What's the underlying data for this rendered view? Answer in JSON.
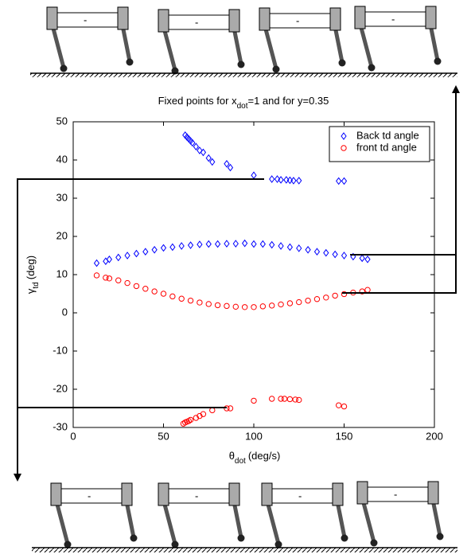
{
  "chart_data": {
    "type": "scatter",
    "title": {
      "before": "Fixed points for x",
      "subscript": "dot",
      "after": "=1 and for y=0.35"
    },
    "x_label": {
      "symbol": "θ",
      "subscript": "dot",
      "unit": "(deg/s)"
    },
    "y_label": {
      "symbol": "γ",
      "subscript": "td",
      "unit": "(deg)"
    },
    "xlim": [
      0,
      200
    ],
    "xticks": [
      0,
      50,
      100,
      150,
      200
    ],
    "ylim": [
      -30,
      50
    ],
    "yticks": [
      -30,
      -20,
      -10,
      0,
      10,
      20,
      30,
      40,
      50
    ],
    "legend": "upper right",
    "series": [
      {
        "name": "Back td angle",
        "color": "#0000ff",
        "marker": "diamond",
        "x": [
          62,
          63,
          64,
          65,
          66,
          68,
          70,
          72,
          75,
          77,
          85,
          87,
          100,
          110,
          113,
          115,
          118,
          120,
          122,
          125,
          147,
          150,
          13,
          18,
          20,
          25,
          30,
          35,
          40,
          45,
          50,
          55,
          60,
          65,
          70,
          75,
          80,
          85,
          90,
          95,
          100,
          105,
          110,
          115,
          120,
          125,
          130,
          135,
          140,
          145,
          150,
          155,
          160,
          163
        ],
        "values": [
          46.5,
          46,
          45.5,
          45,
          44.5,
          43.5,
          42.5,
          42,
          40.5,
          39.5,
          39,
          38,
          36,
          35,
          35,
          34.8,
          34.8,
          34.7,
          34.6,
          34.6,
          34.5,
          34.5,
          13,
          13.5,
          14,
          14.5,
          15,
          15.5,
          16,
          16.5,
          17,
          17.2,
          17.5,
          17.7,
          17.9,
          18,
          18,
          18.1,
          18.1,
          18.2,
          18,
          18,
          17.8,
          17.5,
          17.2,
          16.9,
          16.5,
          16,
          15.7,
          15.3,
          15,
          14.7,
          14.3,
          14
        ]
      },
      {
        "name": "front td angle",
        "color": "#ff0000",
        "marker": "circle",
        "x": [
          13,
          18,
          20,
          25,
          30,
          35,
          40,
          45,
          50,
          55,
          60,
          65,
          70,
          75,
          80,
          85,
          90,
          95,
          100,
          105,
          110,
          115,
          120,
          125,
          130,
          135,
          140,
          145,
          150,
          155,
          160,
          163,
          61,
          62,
          63,
          64,
          65,
          68,
          70,
          72,
          77,
          85,
          87,
          100,
          110,
          115,
          117,
          120,
          123,
          125,
          147,
          150
        ],
        "values": [
          9.8,
          9.2,
          9,
          8.5,
          7.8,
          7,
          6.3,
          5.6,
          5,
          4.3,
          3.7,
          3.2,
          2.7,
          2.3,
          2,
          1.8,
          1.6,
          1.5,
          1.5,
          1.7,
          1.9,
          2.2,
          2.5,
          2.8,
          3.2,
          3.6,
          4,
          4.5,
          4.9,
          5.3,
          5.6,
          6,
          -29,
          -28.7,
          -28.5,
          -28.3,
          -28,
          -27.5,
          -27,
          -26.5,
          -25.5,
          -25,
          -25,
          -23,
          -22.5,
          -22.5,
          -22.5,
          -22.6,
          -22.7,
          -22.8,
          -24.2,
          -24.5
        ]
      }
    ]
  }
}
